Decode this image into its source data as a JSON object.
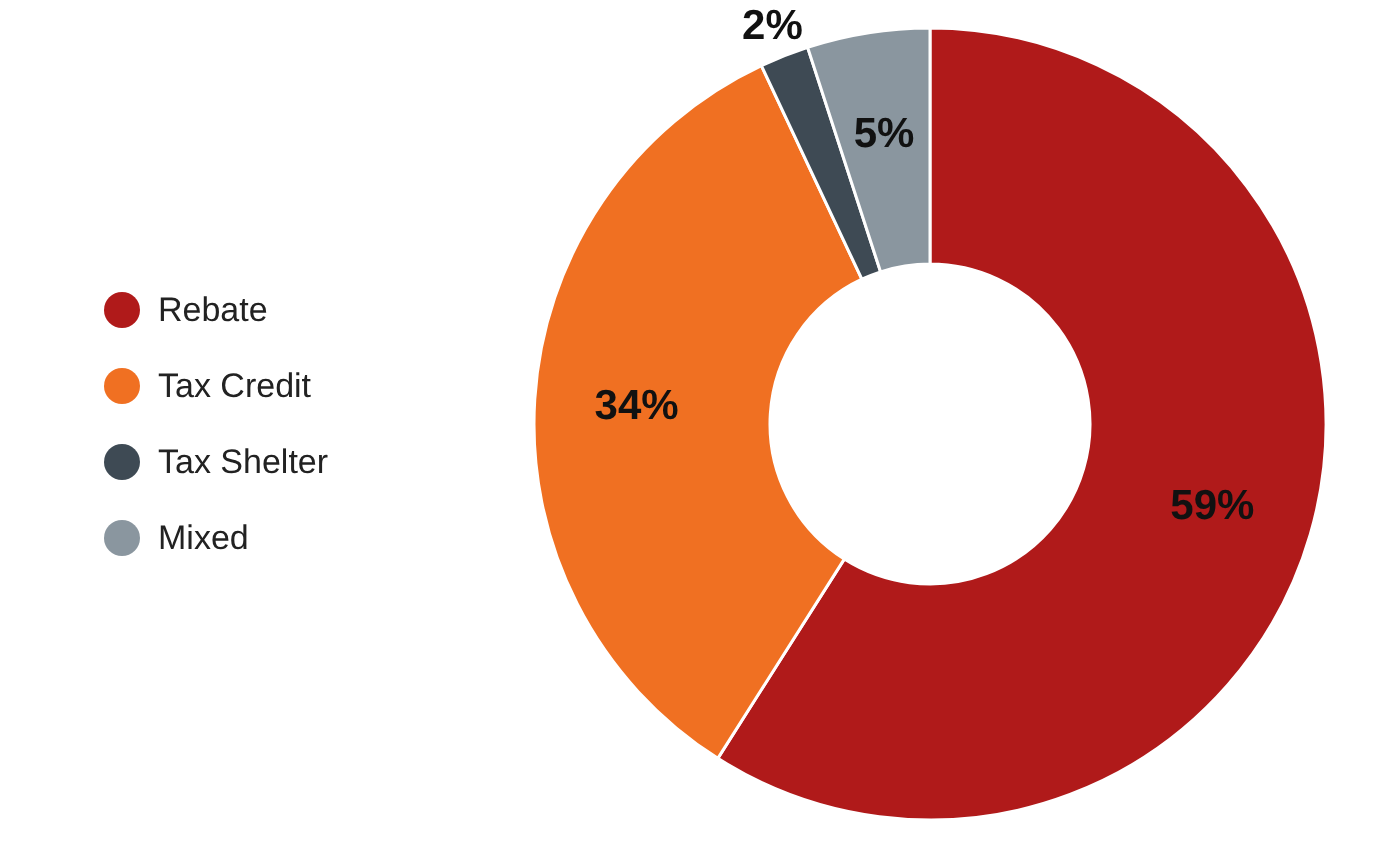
{
  "chart_data": {
    "type": "donut",
    "categories": [
      "Rebate",
      "Tax Credit",
      "Tax Shelter",
      "Mixed"
    ],
    "values": [
      59,
      34,
      2,
      5
    ],
    "colors": [
      "#b01a1a",
      "#f07022",
      "#3e4a54",
      "#8a969f"
    ],
    "value_labels": [
      "59%",
      "34%",
      "2%",
      "5%"
    ],
    "legend": "left"
  }
}
